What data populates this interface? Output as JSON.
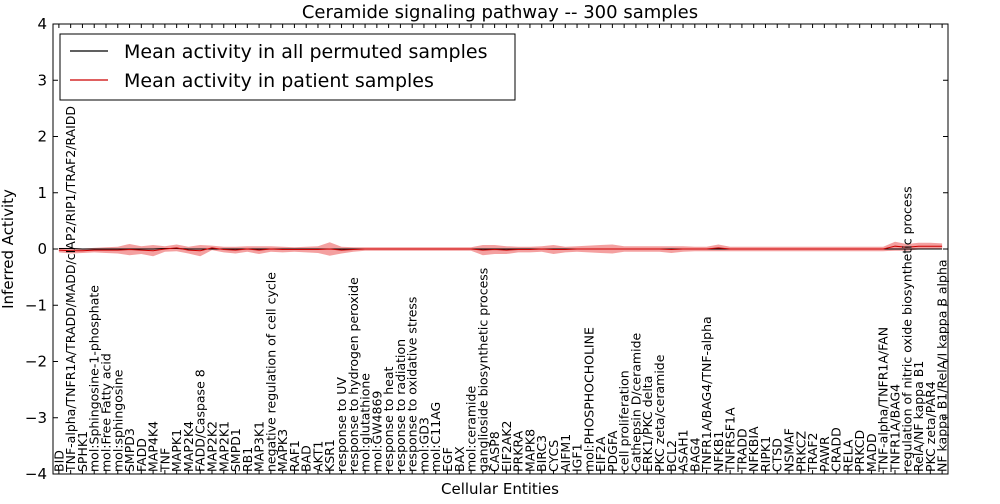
{
  "chart_data": {
    "type": "line",
    "title": "Ceramide signaling pathway -- 300 samples",
    "xlabel": "Cellular Entities",
    "ylabel": "Inferred Activity",
    "ylim": [
      -4,
      4
    ],
    "yticks": [
      4,
      3,
      2,
      1,
      0,
      -1,
      -2,
      -3,
      -4
    ],
    "ytick_labels": [
      "4",
      "3",
      "2",
      "1",
      "0",
      "−1",
      "−2",
      "−3",
      "−4"
    ],
    "grid": false,
    "legend_position": "top-left",
    "categories": [
      "BID",
      "TNF-alpha/TNFR1A/TRADD/MADD/cIAP2/RIP1/TRAF2/RAIDD",
      "SPHK1",
      "mol:Sphingosine-1-phosphate",
      "mol:Free Fatty acid",
      "mol:sphingosine",
      "SMPD3",
      "FADD",
      "MAP4K4",
      "TNF",
      "MAPK1",
      "MAP2K4",
      "FADD/Caspase 8",
      "MAP2K2",
      "MAP2K1",
      "SMPD1",
      "RB1",
      "MAP3K1",
      "negative regulation of cell cycle",
      "MAPK3",
      "RAF1",
      "BAD",
      "AKT1",
      "KSR1",
      "response to UV",
      "response to hydrogen peroxide",
      "mol:glutathione",
      "mol:GW4869",
      "response to heat",
      "response to radiation",
      "response to oxidative stress",
      "mol:GD3",
      "mol:C11AG",
      "EGF",
      "BAX",
      "mol:ceramide",
      "ganglioside biosynthetic process",
      "CASP8",
      "EIF2AK2",
      "PRKRA",
      "MAPK8",
      "BIRC3",
      "CYCS",
      "AIFM1",
      "IGF1",
      "mol:PHOSPHOCHOLINE",
      "EIF2A",
      "PDGFA",
      "cell proliferation",
      "Cathepsin D/ceramide",
      "ERK1/PKC delta",
      "PKC zeta/ceramide",
      "BCL2",
      "ASAH1",
      "BAG4",
      "TNFR1A/BAG4/TNF-alpha",
      "NFKB1",
      "TNFRSF1A",
      "TRADD",
      "NFKBIA",
      "RIPK1",
      "CTSD",
      "NSMAF",
      "PRKCZ",
      "TRAF2",
      "PAWR",
      "CRADD",
      "RELA",
      "PRKCD",
      "MADD",
      "TNF-alpha/TNFR1A/FAN",
      "TNFR1A/BAG4",
      "regulation of nitric oxide biosynthetic process",
      "RelA/NF kappa B1",
      "PKC zeta/PAR4",
      "NF kappa B1/RelA/I kappa B alpha"
    ],
    "series": [
      {
        "name": "Mean activity in all permuted samples",
        "color": "#000000",
        "values": [
          0.01,
          0.01,
          0.0,
          0.0,
          0.0,
          0.0,
          0.0,
          0.0,
          0.0,
          0.01,
          0.01,
          0.0,
          0.0,
          0.0,
          0.0,
          0.0,
          0.0,
          0.0,
          0.0,
          0.0,
          0.0,
          0.0,
          0.0,
          0.0,
          0.0,
          0.0,
          0.0,
          0.0,
          0.0,
          0.0,
          0.0,
          0.0,
          0.0,
          0.0,
          0.0,
          0.0,
          0.0,
          0.0,
          0.0,
          0.0,
          0.0,
          0.0,
          0.0,
          0.0,
          0.0,
          0.0,
          0.0,
          0.0,
          0.0,
          0.0,
          0.0,
          0.0,
          0.0,
          0.0,
          0.0,
          0.0,
          0.0,
          0.0,
          0.0,
          0.0,
          0.0,
          0.0,
          0.0,
          0.0,
          0.0,
          0.0,
          0.0,
          0.0,
          0.0,
          0.0,
          0.0,
          0.0,
          0.0,
          0.0,
          0.0,
          0.0
        ]
      },
      {
        "name": "Mean activity in patient samples",
        "color": "#cc0000",
        "band_color": "#f08080",
        "values": [
          -0.02,
          -0.03,
          -0.03,
          -0.02,
          -0.02,
          -0.02,
          -0.01,
          -0.02,
          -0.03,
          0.0,
          0.02,
          -0.02,
          -0.03,
          0.02,
          -0.01,
          -0.02,
          0.0,
          -0.02,
          0.0,
          -0.01,
          -0.01,
          -0.01,
          -0.01,
          0.0,
          -0.02,
          -0.01,
          0.0,
          0.0,
          0.0,
          0.0,
          0.0,
          0.0,
          0.0,
          0.0,
          0.0,
          0.0,
          -0.02,
          -0.01,
          -0.02,
          -0.01,
          -0.01,
          0.0,
          -0.01,
          -0.01,
          0.0,
          0.0,
          0.0,
          0.0,
          0.0,
          0.0,
          0.0,
          0.0,
          -0.01,
          0.0,
          0.0,
          0.0,
          0.02,
          0.0,
          0.0,
          0.0,
          0.0,
          0.0,
          0.0,
          0.0,
          0.0,
          0.0,
          0.0,
          0.0,
          0.0,
          0.0,
          0.0,
          0.05,
          0.03,
          0.05,
          0.05,
          0.05
        ],
        "band_halfwidth": [
          0.04,
          0.05,
          0.04,
          0.04,
          0.05,
          0.06,
          0.1,
          0.07,
          0.1,
          0.05,
          0.06,
          0.06,
          0.1,
          0.04,
          0.05,
          0.06,
          0.05,
          0.07,
          0.05,
          0.05,
          0.04,
          0.05,
          0.06,
          0.12,
          0.06,
          0.04,
          0.03,
          0.03,
          0.03,
          0.03,
          0.03,
          0.03,
          0.03,
          0.03,
          0.03,
          0.03,
          0.09,
          0.08,
          0.07,
          0.05,
          0.05,
          0.05,
          0.08,
          0.05,
          0.05,
          0.06,
          0.07,
          0.08,
          0.05,
          0.05,
          0.05,
          0.05,
          0.06,
          0.05,
          0.04,
          0.04,
          0.06,
          0.04,
          0.04,
          0.04,
          0.04,
          0.04,
          0.04,
          0.04,
          0.04,
          0.04,
          0.04,
          0.04,
          0.04,
          0.04,
          0.04,
          0.08,
          0.06,
          0.06,
          0.06,
          0.05
        ]
      }
    ]
  }
}
